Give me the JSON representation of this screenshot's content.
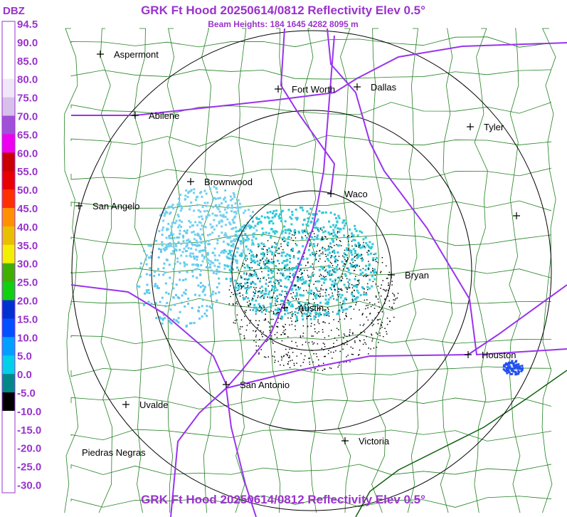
{
  "header": {
    "title": "GRK Ft Hood 20250614/0812 Reflectivity Elev 0.5°",
    "subtitle": "Beam Heights: 184 1645 4282 8095 m",
    "footer": "GRK Ft Hood 20250614/0812 Reflectivity Elev 0.5°"
  },
  "legend": {
    "title": "DBZ",
    "labels": [
      "94.5",
      "90.0",
      "85.0",
      "80.0",
      "75.0",
      "70.0",
      "65.0",
      "60.0",
      "55.0",
      "50.0",
      "45.0",
      "40.0",
      "35.0",
      "30.0",
      "25.0",
      "20.0",
      "15.0",
      "10.0",
      "5.0",
      "0.0",
      "-5.0",
      "-10.0",
      "-15.0",
      "-20.0",
      "-25.0",
      "-30.0"
    ],
    "colors": [
      "#ffffff",
      "#ffffff",
      "#ffffff",
      "#f0e8f8",
      "#d8c0ec",
      "#a050d8",
      "#ee00ee",
      "#c80000",
      "#e80000",
      "#ff3000",
      "#ff9000",
      "#e8c000",
      "#f0f000",
      "#40b000",
      "#10d010",
      "#0030d0",
      "#0050ff",
      "#00a0ff",
      "#00d0e8",
      "#008888",
      "#000000",
      "#ffffff",
      "#ffffff",
      "#ffffff",
      "#ffffff"
    ]
  },
  "cities": [
    "Aspermont",
    "Fort Worth",
    "Dallas",
    "Abilene",
    "Tyler",
    "Brownwood",
    "Waco",
    "San Angelo",
    "Bryan",
    "Austin",
    "Houston",
    "San Antonio",
    "Uvalde",
    "Victoria",
    "Piedras Negras"
  ]
}
